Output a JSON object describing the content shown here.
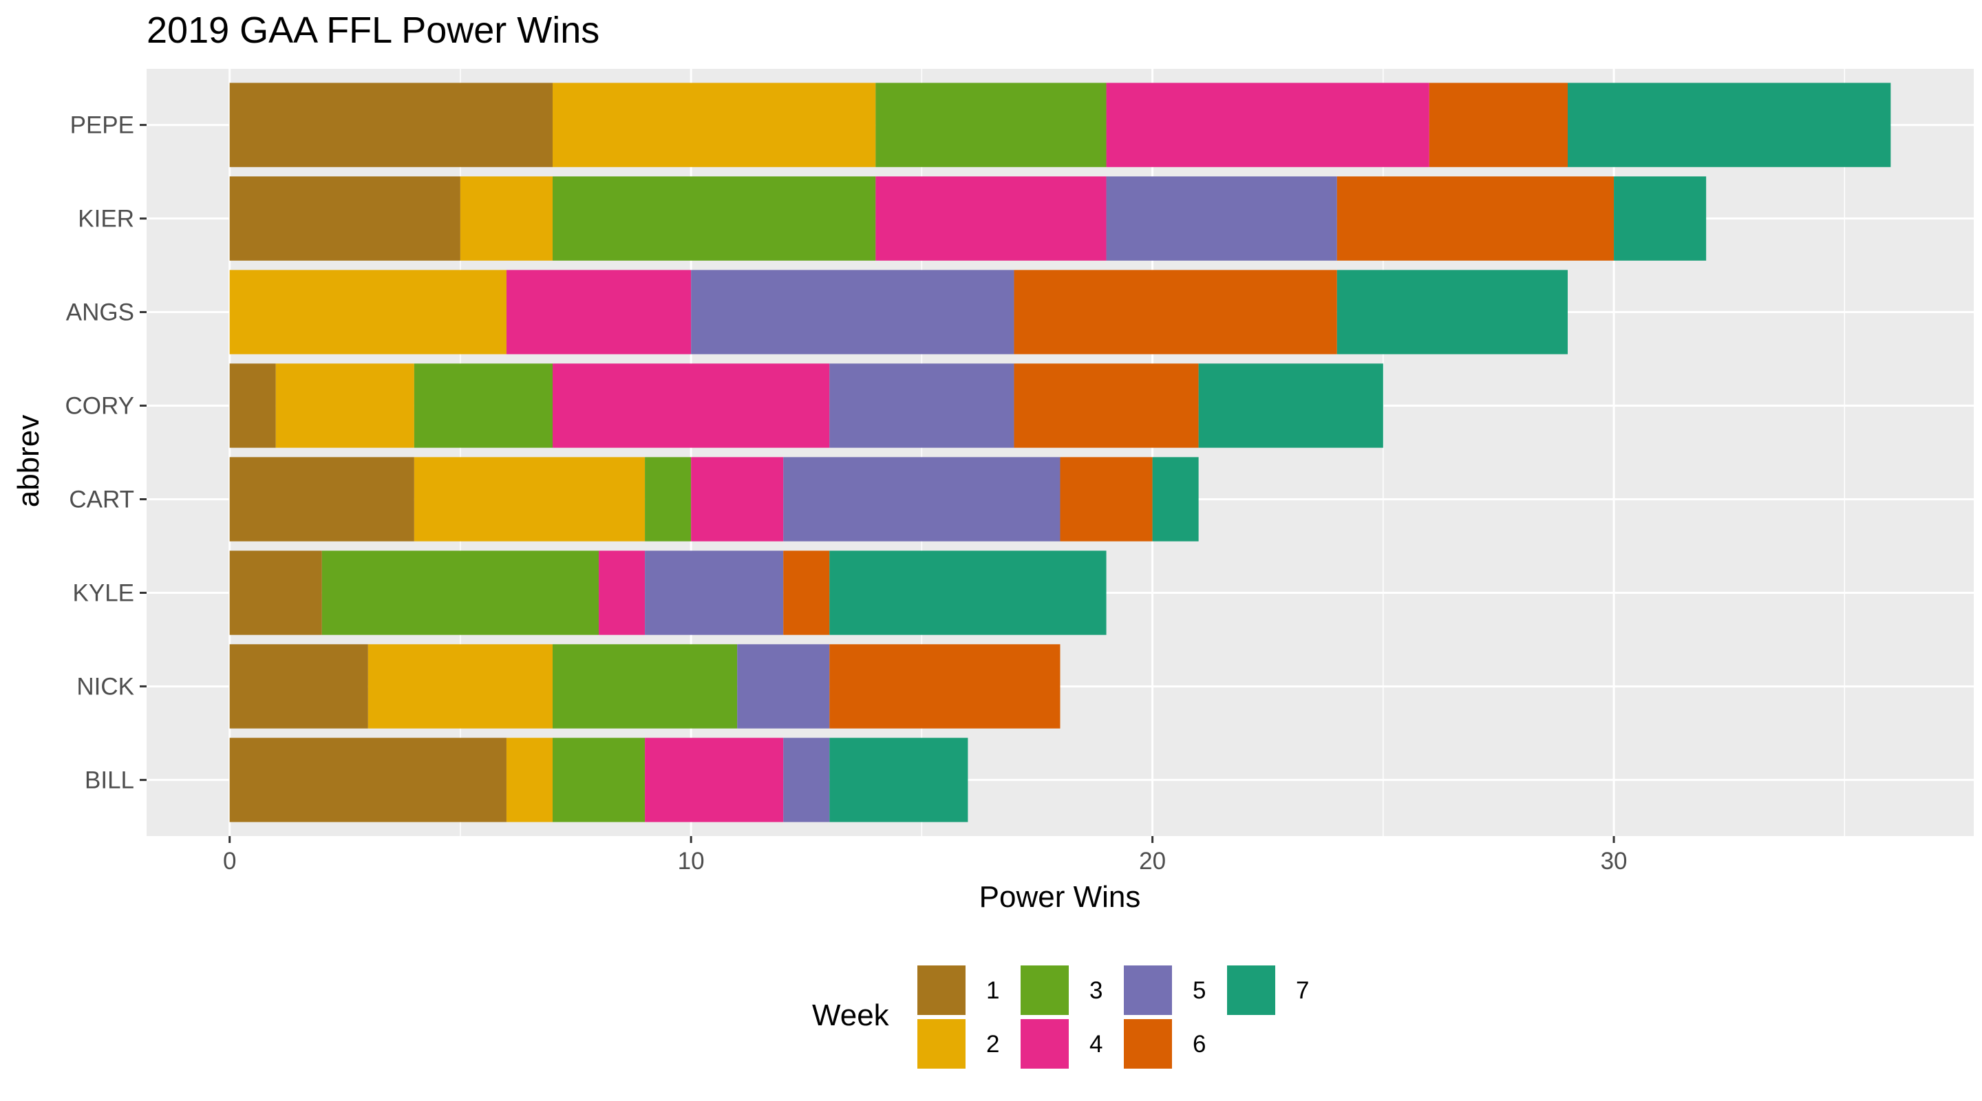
{
  "chart_data": {
    "type": "bar",
    "orientation": "horizontal",
    "stacked": true,
    "title": "2019 GAA FFL Power Wins",
    "xlabel": "Power Wins",
    "ylabel": "abbrev",
    "xlim": [
      -1.8,
      37.8
    ],
    "x_ticks": [
      0,
      10,
      20,
      30
    ],
    "x_tick_labels": [
      "0",
      "10",
      "20",
      "30"
    ],
    "grid": true,
    "categories": [
      "PEPE",
      "KIER",
      "ANGS",
      "CORY",
      "CART",
      "KYLE",
      "NICK",
      "BILL"
    ],
    "legend": {
      "title": "Week",
      "position": "bottom"
    },
    "series": [
      {
        "name": "1",
        "color": "#a6761d",
        "values": [
          7,
          5,
          0,
          1,
          4,
          2,
          3,
          6
        ]
      },
      {
        "name": "2",
        "color": "#e6ab02",
        "values": [
          7,
          2,
          6,
          3,
          5,
          0,
          4,
          1
        ]
      },
      {
        "name": "3",
        "color": "#66a61e",
        "values": [
          5,
          7,
          0,
          3,
          1,
          6,
          4,
          2
        ]
      },
      {
        "name": "4",
        "color": "#e7298a",
        "values": [
          7,
          5,
          4,
          6,
          2,
          1,
          0,
          3
        ]
      },
      {
        "name": "5",
        "color": "#7570b3",
        "values": [
          0,
          5,
          7,
          4,
          6,
          3,
          2,
          1
        ]
      },
      {
        "name": "6",
        "color": "#d95f02",
        "values": [
          3,
          6,
          7,
          4,
          2,
          1,
          5,
          0
        ]
      },
      {
        "name": "7",
        "color": "#1b9e77",
        "values": [
          7,
          2,
          5,
          4,
          1,
          6,
          0,
          3
        ]
      }
    ]
  }
}
